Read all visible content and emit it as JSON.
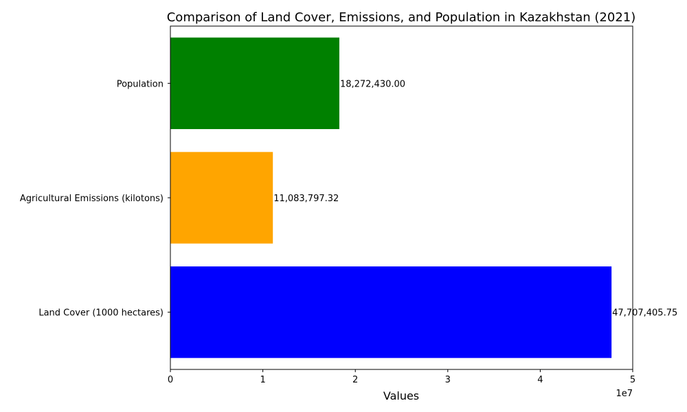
{
  "chart_data": {
    "type": "bar",
    "orientation": "horizontal",
    "title": "Comparison of Land Cover, Emissions, and Population in Kazakhstan (2021)",
    "xlabel": "Values",
    "ylabel": "",
    "xlim": [
      0,
      50000000
    ],
    "x_ticks": [
      0,
      10000000,
      20000000,
      30000000,
      40000000,
      50000000
    ],
    "x_tick_labels": [
      "0",
      "1",
      "2",
      "3",
      "4",
      "5"
    ],
    "x_offset_label": "1e7",
    "categories": [
      "Land Cover (1000 hectares)",
      "Agricultural Emissions (kilotons)",
      "Population"
    ],
    "values": [
      47707405.75,
      11083797.32,
      18272430.0
    ],
    "value_labels": [
      "47,707,405.75",
      "11,083,797.32",
      "18,272,430.00"
    ],
    "colors": [
      "#0000ff",
      "#ffa500",
      "#008000"
    ],
    "grid": false,
    "legend": "none"
  }
}
